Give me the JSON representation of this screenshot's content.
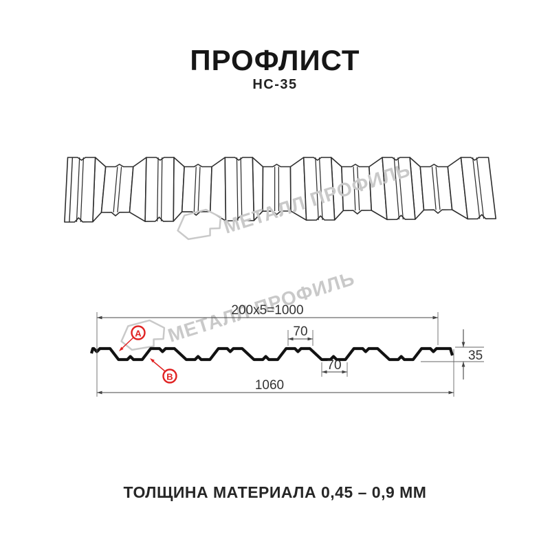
{
  "header": {
    "title": "ПРОФЛИСТ",
    "subtitle": "НС-35"
  },
  "watermark": {
    "text": "МЕТАЛЛ ПРОФИЛЬ"
  },
  "section": {
    "dim_useful_width": "200x5=1000",
    "dim_total_width": "1060",
    "dim_crest_width": "70",
    "dim_trough_width": "70",
    "dim_height": "35",
    "label_a": "А",
    "label_b": "В"
  },
  "footer": {
    "thickness_note": "ТОЛЩИНА МАТЕРИАЛА 0,45 – 0,9 ММ"
  },
  "colors": {
    "accent_red": "#e02222",
    "drawing_line": "#2d2d2d",
    "profile_line": "#121212",
    "dim_line": "#444444",
    "ext_line": "#666666",
    "watermark": "#c9c9c9"
  }
}
